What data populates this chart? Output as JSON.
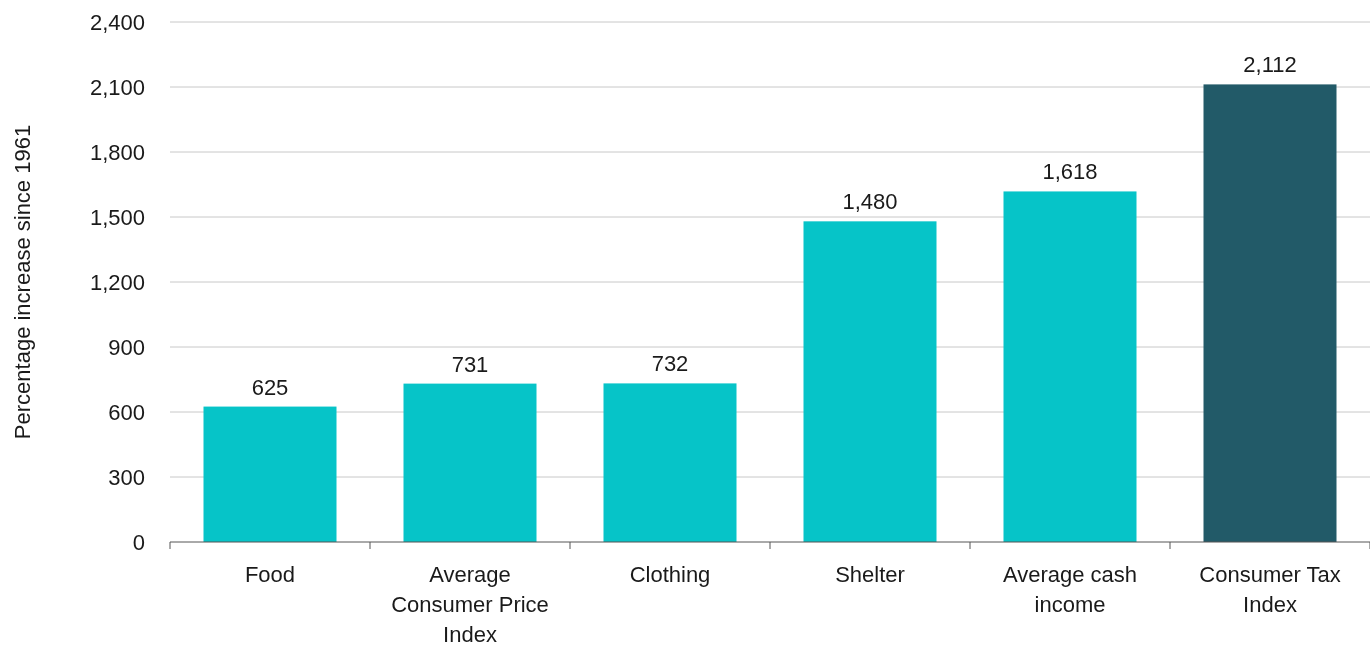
{
  "chart_data": {
    "type": "bar",
    "ylabel": "Percentage increase since 1961",
    "categories": [
      "Food",
      "Average Consumer Price Index",
      "Clothing",
      "Shelter",
      "Average cash income",
      "Consumer Tax Index"
    ],
    "values": [
      625,
      731,
      732,
      1480,
      1618,
      2112
    ],
    "colors": [
      "#06c4c8",
      "#06c4c8",
      "#06c4c8",
      "#06c4c8",
      "#06c4c8",
      "#225a68"
    ],
    "ylim": [
      0,
      2400
    ],
    "yticks": [
      0,
      300,
      600,
      900,
      {
        "value": 1200,
        "label": "1,200"
      },
      {
        "value": 1500,
        "label": "1,500"
      },
      {
        "value": 1800,
        "label": "1,800"
      },
      {
        "value": 2100,
        "label": "2,100"
      },
      {
        "value": 2400,
        "label": "2,400"
      }
    ],
    "value_labels": [
      "625",
      "731",
      "732",
      "1,480",
      "1,618",
      "2,112"
    ],
    "grid": "y"
  }
}
